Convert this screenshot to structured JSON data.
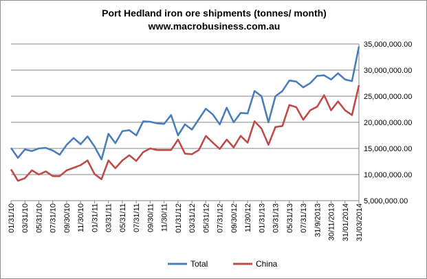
{
  "chart_data": {
    "type": "line",
    "title_lines": [
      "Port Hedland iron ore shipments (tonnes/ month)",
      "www.macrobusiness.com.au"
    ],
    "ylim": [
      5000000,
      35000000
    ],
    "y_tick_labels": [
      "5,000,000.00",
      "10,000,000.00",
      "15,000,000.00",
      "20,000,000.00",
      "25,000,000.00",
      "30,000,000.00",
      "35,000,000.00"
    ],
    "y_axis_position": "right",
    "grid": true,
    "legend_position": "bottom",
    "x_tick_labels": [
      "01/31/10",
      "03/31/10",
      "05/31/10",
      "07/31/10",
      "09/30/10",
      "11/30/10",
      "01/31/11",
      "03/31/11",
      "05/31/11",
      "07/31/11",
      "09/30/11",
      "11/30/11",
      "01/31/12",
      "03/31/12",
      "05/31/12",
      "07/31/12",
      "09/30/12",
      "11/30/12",
      "01/31/13",
      "03/31/13",
      "05/31/13",
      "07/31/13",
      "31/9/2013",
      "30/11/2013",
      "31/01/2014",
      "31/03/2014"
    ],
    "series": [
      {
        "name": "Total",
        "color": "#4a7ebb",
        "values": [
          15100000,
          13200000,
          14800000,
          14500000,
          15000000,
          15100000,
          14600000,
          13800000,
          15700000,
          17000000,
          15800000,
          17300000,
          15400000,
          12900000,
          17800000,
          16000000,
          18300000,
          18500000,
          17500000,
          20200000,
          20100000,
          19800000,
          19700000,
          21400000,
          17500000,
          19600000,
          18600000,
          20600000,
          22600000,
          21500000,
          19600000,
          22800000,
          20000000,
          21800000,
          21700000,
          26000000,
          25000000,
          20000000,
          25000000,
          26000000,
          28000000,
          27800000,
          26700000,
          27500000,
          28900000,
          29000000,
          28200000,
          29400000,
          28200000,
          27900000,
          34500000
        ]
      },
      {
        "name": "China",
        "color": "#be4b48",
        "values": [
          11000000,
          8800000,
          9300000,
          10800000,
          10000000,
          10600000,
          9700000,
          9700000,
          10800000,
          11300000,
          11800000,
          12700000,
          10100000,
          9100000,
          12700000,
          11200000,
          12700000,
          13700000,
          12600000,
          14300000,
          15000000,
          14700000,
          14700000,
          14700000,
          16700000,
          14000000,
          13900000,
          14700000,
          17400000,
          16100000,
          14900000,
          16700000,
          15200000,
          17400000,
          16100000,
          20200000,
          18800000,
          15700000,
          19100000,
          19300000,
          23300000,
          22900000,
          20500000,
          22300000,
          23000000,
          25200000,
          22300000,
          24000000,
          22300000,
          21400000,
          27100000
        ]
      }
    ]
  }
}
